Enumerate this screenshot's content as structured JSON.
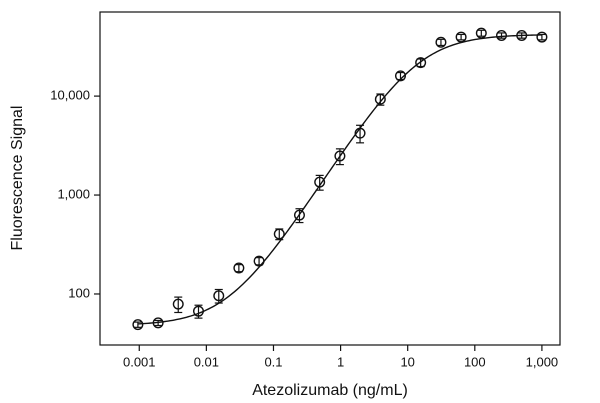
{
  "chart_data": {
    "type": "scatter",
    "x_label": "Atezolizumab (ng/mL)",
    "y_label": "Fluorescence Signal",
    "x_log": true,
    "y_log": true,
    "xlim": [
      0.00026,
      1860
    ],
    "ylim": [
      30.5,
      70800
    ],
    "xticks": [
      0.001,
      0.01,
      0.1,
      1,
      10,
      100,
      {
        "value": 1000,
        "label": "1,000"
      }
    ],
    "yticks": [
      100,
      {
        "value": 1000,
        "label": "1,000"
      },
      {
        "value": 10000,
        "label": "10,000"
      }
    ],
    "color": "#111111",
    "x": [
      0.000954,
      0.00191,
      0.00381,
      0.00763,
      0.0153,
      0.0305,
      0.061,
      0.122,
      0.244,
      0.488,
      0.977,
      1.95,
      3.91,
      7.81,
      15.6,
      31.3,
      62.5,
      125,
      250,
      500,
      1000
    ],
    "values": [
      49,
      51,
      79,
      67,
      96,
      183,
      215,
      404,
      627,
      1350,
      2480,
      4220,
      9300,
      16000,
      21800,
      35000,
      39500,
      43300,
      41000,
      41000,
      39500
    ],
    "errors": [
      3,
      3,
      14,
      10,
      15,
      15,
      18,
      50,
      100,
      230,
      450,
      850,
      1200,
      1300,
      1900,
      2500,
      2500,
      3000,
      2500,
      2500,
      2500
    ],
    "curve": {
      "bottom": 48,
      "top": 42000,
      "ec50": 14,
      "hill": 1.05
    }
  }
}
